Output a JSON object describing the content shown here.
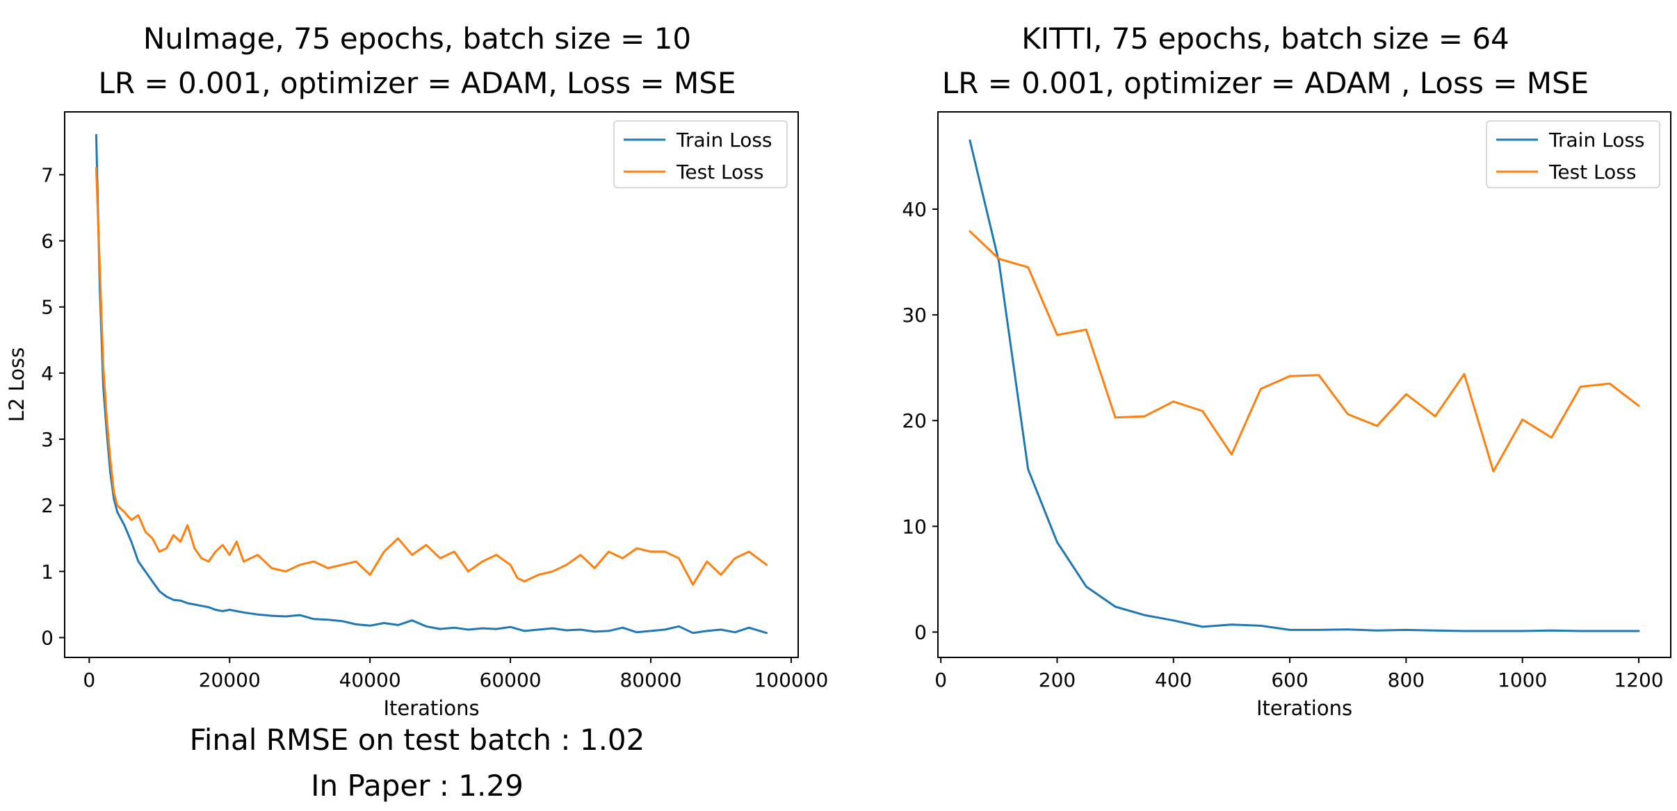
{
  "chart_data": [
    {
      "type": "line",
      "title": [
        "NuImage, 75 epochs, batch size = 10",
        "LR = 0.001, optimizer = ADAM, Loss = MSE"
      ],
      "xlabel": "Iterations",
      "ylabel": "L2 Loss",
      "xlim": [
        -3500,
        101000
      ],
      "ylim": [
        -0.3,
        7.95
      ],
      "xticks": [
        0,
        20000,
        40000,
        60000,
        80000,
        100000
      ],
      "xtick_labels": [
        "0",
        "20000",
        "40000",
        "60000",
        "80000",
        "100000"
      ],
      "yticks": [
        0,
        1,
        2,
        3,
        4,
        5,
        6,
        7
      ],
      "ytick_labels": [
        "0",
        "1",
        "2",
        "3",
        "4",
        "5",
        "6",
        "7"
      ],
      "grid": false,
      "legend": "top-right",
      "series": [
        {
          "name": "Train Loss",
          "color": "#1f77b4",
          "x": [
            1000,
            1500,
            2000,
            2500,
            3000,
            3500,
            4000,
            5000,
            6000,
            7000,
            8000,
            9000,
            10000,
            11000,
            12000,
            13000,
            14000,
            15000,
            16000,
            17000,
            18000,
            19000,
            20000,
            22000,
            24000,
            26000,
            28000,
            30000,
            32000,
            34000,
            36000,
            38000,
            40000,
            42000,
            44000,
            46000,
            48000,
            50000,
            52000,
            54000,
            56000,
            58000,
            60000,
            62000,
            64000,
            66000,
            68000,
            70000,
            72000,
            74000,
            76000,
            78000,
            80000,
            82000,
            84000,
            86000,
            88000,
            90000,
            92000,
            94000,
            96500
          ],
          "y": [
            7.6,
            5.3,
            3.8,
            3.1,
            2.5,
            2.1,
            1.9,
            1.7,
            1.45,
            1.15,
            1.0,
            0.85,
            0.7,
            0.62,
            0.57,
            0.56,
            0.52,
            0.5,
            0.48,
            0.46,
            0.42,
            0.4,
            0.42,
            0.38,
            0.35,
            0.33,
            0.32,
            0.34,
            0.28,
            0.27,
            0.25,
            0.2,
            0.18,
            0.22,
            0.19,
            0.26,
            0.17,
            0.13,
            0.15,
            0.12,
            0.14,
            0.13,
            0.16,
            0.1,
            0.12,
            0.14,
            0.11,
            0.12,
            0.09,
            0.1,
            0.15,
            0.08,
            0.1,
            0.12,
            0.17,
            0.07,
            0.1,
            0.12,
            0.08,
            0.15,
            0.07
          ]
        },
        {
          "name": "Test Loss",
          "color": "#ff7f0e",
          "x": [
            1000,
            1500,
            2000,
            2500,
            3000,
            3500,
            4000,
            5000,
            6000,
            7000,
            8000,
            9000,
            10000,
            11000,
            12000,
            13000,
            14000,
            15000,
            16000,
            17000,
            18000,
            19000,
            20000,
            21000,
            22000,
            23000,
            24000,
            26000,
            28000,
            30000,
            32000,
            34000,
            36000,
            38000,
            40000,
            42000,
            44000,
            46000,
            48000,
            50000,
            52000,
            54000,
            56000,
            58000,
            60000,
            61000,
            62000,
            64000,
            66000,
            68000,
            70000,
            72000,
            74000,
            76000,
            78000,
            80000,
            82000,
            84000,
            85000,
            86000,
            88000,
            90000,
            92000,
            94000,
            96500
          ],
          "y": [
            7.1,
            5.6,
            4.1,
            3.3,
            2.7,
            2.2,
            2.0,
            1.9,
            1.78,
            1.85,
            1.6,
            1.5,
            1.3,
            1.35,
            1.55,
            1.45,
            1.7,
            1.35,
            1.2,
            1.15,
            1.3,
            1.4,
            1.25,
            1.45,
            1.15,
            1.2,
            1.25,
            1.05,
            1.0,
            1.1,
            1.15,
            1.05,
            1.1,
            1.15,
            0.95,
            1.3,
            1.5,
            1.25,
            1.4,
            1.2,
            1.3,
            1.0,
            1.15,
            1.25,
            1.1,
            0.9,
            0.85,
            0.95,
            1.0,
            1.1,
            1.25,
            1.05,
            1.3,
            1.2,
            1.35,
            1.3,
            1.3,
            1.2,
            1.0,
            0.8,
            1.15,
            0.95,
            1.2,
            1.3,
            1.1
          ]
        }
      ]
    },
    {
      "type": "line",
      "title": [
        "KITTI, 75 epochs, batch size = 64",
        "LR = 0.001, optimizer = ADAM , Loss = MSE"
      ],
      "xlabel": "Iterations",
      "ylabel": "",
      "xlim": [
        -5,
        1255
      ],
      "ylim": [
        -2.4,
        49.2
      ],
      "xticks": [
        0,
        200,
        400,
        600,
        800,
        1000,
        1200
      ],
      "xtick_labels": [
        "0",
        "200",
        "400",
        "600",
        "800",
        "1000",
        "1200"
      ],
      "yticks": [
        0,
        10,
        20,
        30,
        40
      ],
      "ytick_labels": [
        "0",
        "10",
        "20",
        "30",
        "40"
      ],
      "grid": false,
      "legend": "top-right",
      "series": [
        {
          "name": "Train Loss",
          "color": "#1f77b4",
          "x": [
            50,
            100,
            150,
            200,
            250,
            300,
            350,
            400,
            450,
            500,
            550,
            600,
            650,
            700,
            750,
            800,
            850,
            900,
            950,
            1000,
            1050,
            1100,
            1150,
            1200
          ],
          "y": [
            46.5,
            35.0,
            15.4,
            8.5,
            4.3,
            2.4,
            1.6,
            1.1,
            0.5,
            0.7,
            0.6,
            0.2,
            0.2,
            0.25,
            0.15,
            0.2,
            0.15,
            0.1,
            0.1,
            0.1,
            0.15,
            0.1,
            0.1,
            0.1
          ]
        },
        {
          "name": "Test Loss",
          "color": "#ff7f0e",
          "x": [
            50,
            100,
            150,
            200,
            250,
            300,
            350,
            400,
            450,
            500,
            550,
            600,
            650,
            700,
            750,
            800,
            850,
            900,
            950,
            1000,
            1050,
            1100,
            1150,
            1200
          ],
          "y": [
            37.9,
            35.3,
            34.5,
            28.1,
            28.6,
            20.3,
            20.4,
            21.8,
            20.9,
            16.8,
            23.0,
            24.2,
            24.3,
            20.6,
            19.5,
            22.5,
            20.4,
            24.4,
            15.2,
            20.1,
            18.4,
            23.2,
            23.5,
            21.4
          ]
        }
      ]
    }
  ],
  "captions": {
    "line1": "Final RMSE on test batch : 1.02",
    "line2": "In Paper : 1.29"
  }
}
